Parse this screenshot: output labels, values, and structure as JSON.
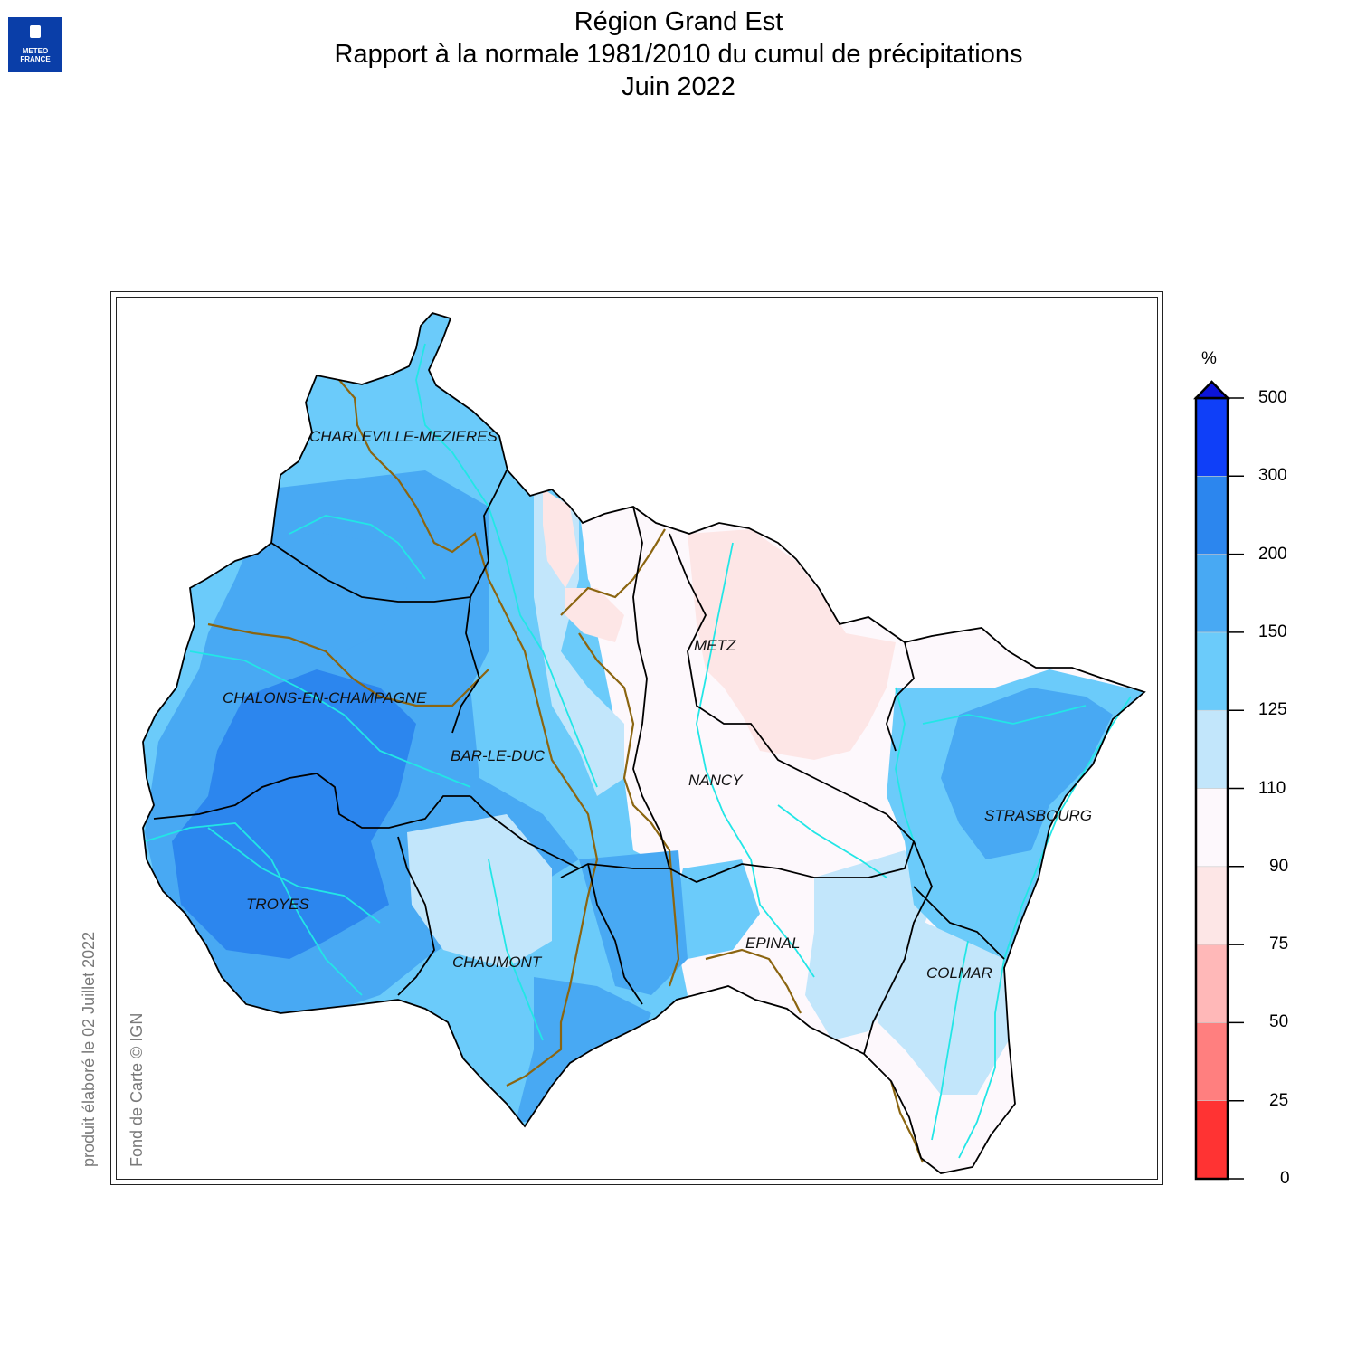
{
  "logo": {
    "line1": "METEO",
    "line2": "FRANCE"
  },
  "title": {
    "line1": "Région Grand Est",
    "line2": "Rapport à la normale 1981/2010 du cumul de précipitations",
    "line3": "Juin 2022"
  },
  "credits": {
    "produced": "produit élaboré le 02 Juillet 2022",
    "basemap": "Fond de Carte © IGN"
  },
  "cities": [
    {
      "id": "charleville",
      "name": "CHARLEVILLE-MEZIERES"
    },
    {
      "id": "metz",
      "name": "METZ"
    },
    {
      "id": "chalons",
      "name": "CHALONS-EN-CHAMPAGNE"
    },
    {
      "id": "barleduc",
      "name": "BAR-LE-DUC"
    },
    {
      "id": "nancy",
      "name": "NANCY"
    },
    {
      "id": "strasbourg",
      "name": "STRASBOURG"
    },
    {
      "id": "troyes",
      "name": "TROYES"
    },
    {
      "id": "epinal",
      "name": "EPINAL"
    },
    {
      "id": "chaumont",
      "name": "CHAUMONT"
    },
    {
      "id": "colmar",
      "name": "COLMAR"
    }
  ],
  "legend": {
    "unit": "%",
    "ticks": [
      "0",
      "25",
      "50",
      "75",
      "90",
      "110",
      "125",
      "150",
      "200",
      "300",
      "500"
    ],
    "classes": [
      {
        "from": 0,
        "to": 25,
        "color": "#ff3333"
      },
      {
        "from": 25,
        "to": 50,
        "color": "#ff7f7f"
      },
      {
        "from": 50,
        "to": 75,
        "color": "#ffb8b8"
      },
      {
        "from": 75,
        "to": 90,
        "color": "#fde6e6"
      },
      {
        "from": 90,
        "to": 110,
        "color": "#fdf8fc"
      },
      {
        "from": 110,
        "to": 125,
        "color": "#c2e6fb"
      },
      {
        "from": 125,
        "to": 150,
        "color": "#6bcbfa"
      },
      {
        "from": 150,
        "to": 200,
        "color": "#48a9f3"
      },
      {
        "from": 200,
        "to": 300,
        "color": "#2c86ee"
      },
      {
        "from": 300,
        "to": 500,
        "color": "#0f3ff8"
      }
    ],
    "overflow_color": "#0c14d8"
  },
  "colors": {
    "department_border": "#000000",
    "basin_divide": "#8b6510",
    "rivers": "#22e6e6"
  }
}
